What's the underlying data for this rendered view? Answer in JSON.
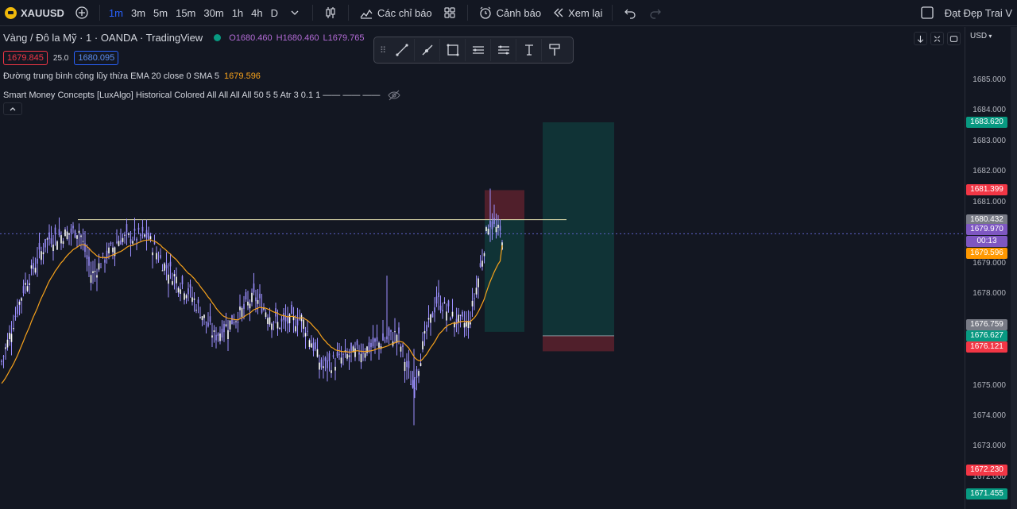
{
  "toolbar": {
    "symbol": "XAUUSD",
    "intervals": [
      "1m",
      "3m",
      "5m",
      "15m",
      "30m",
      "1h",
      "4h",
      "D"
    ],
    "active_interval": "1m",
    "indicators_label": "Các chỉ báo",
    "alerts_label": "Cảnh báo",
    "replay_label": "Xem lại",
    "layout_name": "Đạt Đẹp Trai V"
  },
  "legend": {
    "title": "Vàng / Đô la Mỹ · 1 · OANDA · TradingView",
    "open": "O1680.460",
    "high": "H1680.460",
    "low": "L1679.765",
    "sell_price": "1679.845",
    "spread": "25.0",
    "buy_price": "1680.095",
    "ema_label": "Đường trung bình cộng lũy thừa EMA 20 close 0 SMA 5",
    "ema_value": "1679.596",
    "smc_label": "Smart Money Concepts [LuxAlgo] Historical Colored All All All All 50 5 5 Atr 3 0.1 1 —— —— ——"
  },
  "price_scale": {
    "currency": "USD",
    "ticks": [
      "1685.000",
      "1684.000",
      "1683.000",
      "1682.000",
      "1681.000",
      "1679.000",
      "1678.000",
      "1677.000",
      "1675.000",
      "1674.000",
      "1673.000",
      "1672.000"
    ],
    "tags": [
      {
        "value": "1683.620",
        "color": "#089981"
      },
      {
        "value": "1681.399",
        "color": "#f23645"
      },
      {
        "value": "1680.432",
        "color": "#787b86"
      },
      {
        "value": "1679.970",
        "color": "#7e57c2"
      },
      {
        "value": "00:13",
        "color": "#7e57c2"
      },
      {
        "value": "1679.596",
        "color": "#ff9800"
      },
      {
        "value": "1676.759",
        "color": "#787b86"
      },
      {
        "value": "1676.627",
        "color": "#089981"
      },
      {
        "value": "1676.121",
        "color": "#f23645"
      },
      {
        "value": "1672.230",
        "color": "#f23645"
      },
      {
        "value": "1671.455",
        "color": "#089981"
      }
    ]
  },
  "colors": {
    "background": "#131722",
    "candle": "#9c8fff",
    "ema": "#f7a21b",
    "hline": "#e6e3b0",
    "profit_zone": "rgba(8,153,129,0.22)",
    "loss_zone": "rgba(242,54,69,0.28)"
  },
  "chart_data": {
    "type": "candlestick",
    "ylim": [
      1671.0,
      1685.6
    ],
    "current_price": 1679.97,
    "ema_last": 1679.596,
    "horizontal_line": 1680.432,
    "positions": [
      {
        "name": "short-position-small",
        "entry": 1680.432,
        "stop": 1681.399,
        "target": 1676.759
      },
      {
        "name": "long-position-large",
        "entry": 1676.627,
        "stop": 1676.121,
        "target": 1683.62
      }
    ]
  },
  "drawing_tools": [
    "grip",
    "trend-line",
    "ray",
    "rectangle",
    "long-position",
    "short-position",
    "text",
    "brush"
  ]
}
